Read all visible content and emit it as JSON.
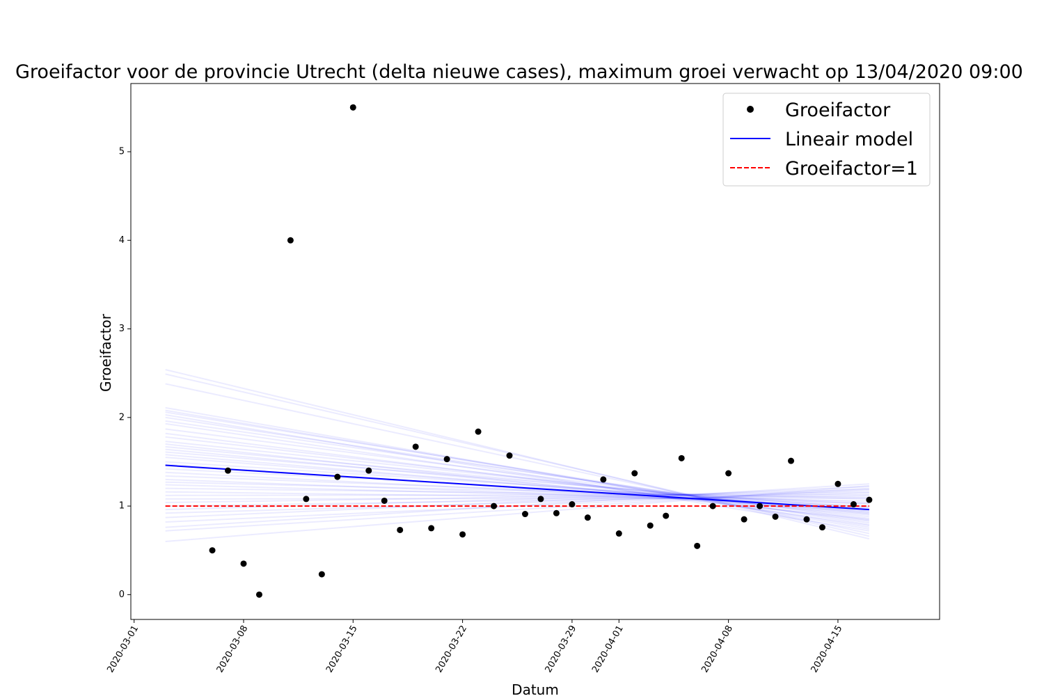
{
  "chart_data": {
    "type": "scatter",
    "title": "Groeifactor voor de provincie Utrecht (delta nieuwe cases), maximum groei verwacht op 13/04/2020 09:00",
    "xlabel": "Datum",
    "ylabel": "Groeifactor",
    "x_range": [
      "2020-02-29T19:00",
      "2020-04-21T12:00"
    ],
    "ylim": [
      -0.28,
      5.77
    ],
    "x_ticks": [
      "2020-03-01",
      "2020-03-08",
      "2020-03-15",
      "2020-03-22",
      "2020-03-29",
      "2020-04-01",
      "2020-04-08",
      "2020-04-15"
    ],
    "y_ticks": [
      0,
      1,
      2,
      3,
      4,
      5
    ],
    "grid": false,
    "legend_position": "top-right",
    "colors": {
      "points": "#000000",
      "model": "#0000ff",
      "reference": "#ff0000",
      "samples": "#0000ff"
    },
    "series": [
      {
        "name": "Groeifactor",
        "kind": "points",
        "points": [
          [
            "2020-03-06",
            0.5
          ],
          [
            "2020-03-07",
            1.4
          ],
          [
            "2020-03-08",
            0.35
          ],
          [
            "2020-03-09",
            0.0
          ],
          [
            "2020-03-11",
            4.0
          ],
          [
            "2020-03-12",
            1.08
          ],
          [
            "2020-03-13",
            0.23
          ],
          [
            "2020-03-14",
            1.33
          ],
          [
            "2020-03-15",
            5.5
          ],
          [
            "2020-03-16",
            1.4
          ],
          [
            "2020-03-17",
            1.06
          ],
          [
            "2020-03-18",
            0.73
          ],
          [
            "2020-03-19",
            1.67
          ],
          [
            "2020-03-20",
            0.75
          ],
          [
            "2020-03-21",
            1.53
          ],
          [
            "2020-03-22",
            0.68
          ],
          [
            "2020-03-23",
            1.84
          ],
          [
            "2020-03-24",
            1.0
          ],
          [
            "2020-03-25",
            1.57
          ],
          [
            "2020-03-26",
            0.91
          ],
          [
            "2020-03-27",
            1.08
          ],
          [
            "2020-03-28",
            0.92
          ],
          [
            "2020-03-29",
            1.02
          ],
          [
            "2020-03-30",
            0.87
          ],
          [
            "2020-03-31",
            1.3
          ],
          [
            "2020-04-01",
            0.69
          ],
          [
            "2020-04-02",
            1.37
          ],
          [
            "2020-04-03",
            0.78
          ],
          [
            "2020-04-04",
            0.89
          ],
          [
            "2020-04-05",
            1.54
          ],
          [
            "2020-04-06",
            0.55
          ],
          [
            "2020-04-07",
            1.0
          ],
          [
            "2020-04-08",
            1.37
          ],
          [
            "2020-04-09",
            0.85
          ],
          [
            "2020-04-10",
            1.0
          ],
          [
            "2020-04-11",
            0.88
          ],
          [
            "2020-04-12",
            1.51
          ],
          [
            "2020-04-13",
            0.85
          ],
          [
            "2020-04-14",
            0.76
          ],
          [
            "2020-04-15",
            1.25
          ],
          [
            "2020-04-16",
            1.02
          ],
          [
            "2020-04-17",
            1.07
          ]
        ]
      },
      {
        "name": "Lineair model",
        "kind": "line",
        "points": [
          [
            "2020-03-03",
            1.46
          ],
          [
            "2020-04-17",
            0.96
          ]
        ]
      },
      {
        "name": "Groeifactor=1",
        "kind": "dashed-line",
        "points": [
          [
            "2020-03-03",
            1.0
          ],
          [
            "2020-04-17",
            1.0
          ]
        ]
      },
      {
        "kind": "faint-lines",
        "x_start": "2020-03-03",
        "x_end": "2020-04-17",
        "lines": [
          [
            2.54,
            0.63
          ],
          [
            2.49,
            0.66
          ],
          [
            2.38,
            0.69
          ],
          [
            2.11,
            0.74
          ],
          [
            2.08,
            0.76
          ],
          [
            2.06,
            0.79
          ],
          [
            2.03,
            0.72
          ],
          [
            2.0,
            0.81
          ],
          [
            1.96,
            0.84
          ],
          [
            1.93,
            0.78
          ],
          [
            1.87,
            0.86
          ],
          [
            1.82,
            0.83
          ],
          [
            1.78,
            0.88
          ],
          [
            1.73,
            0.91
          ],
          [
            1.7,
            0.85
          ],
          [
            1.67,
            0.93
          ],
          [
            1.64,
            0.9
          ],
          [
            1.61,
            0.97
          ],
          [
            1.58,
            0.92
          ],
          [
            1.55,
            0.95
          ],
          [
            1.5,
            0.99
          ],
          [
            1.47,
            0.94
          ],
          [
            1.42,
            1.02
          ],
          [
            1.38,
            0.98
          ],
          [
            1.34,
            1.04
          ],
          [
            1.3,
            1.0
          ],
          [
            1.27,
            1.08
          ],
          [
            1.24,
            1.03
          ],
          [
            1.2,
            1.1
          ],
          [
            1.16,
            1.06
          ],
          [
            1.12,
            1.13
          ],
          [
            1.08,
            1.09
          ],
          [
            1.04,
            1.16
          ],
          [
            1.0,
            1.12
          ],
          [
            0.96,
            1.19
          ],
          [
            0.92,
            1.15
          ],
          [
            0.87,
            1.22
          ],
          [
            0.82,
            1.18
          ],
          [
            0.76,
            1.25
          ],
          [
            0.72,
            1.2
          ],
          [
            0.6,
            1.23
          ]
        ]
      }
    ]
  }
}
